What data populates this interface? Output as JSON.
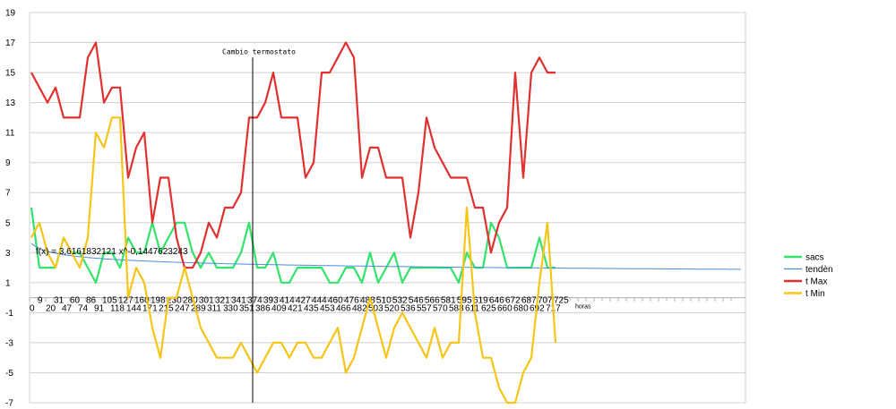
{
  "chart_data": {
    "type": "line",
    "x_categories": [
      "0",
      "9",
      "20",
      "31",
      "47",
      "60",
      "74",
      "86",
      "91",
      "105",
      "118",
      "127",
      "144",
      "160",
      "171",
      "198",
      "215",
      "230",
      "247",
      "280",
      "289",
      "301",
      "311",
      "321",
      "330",
      "341",
      "351",
      "374",
      "386",
      "393",
      "409",
      "414",
      "421",
      "427",
      "435",
      "444",
      "453",
      "460",
      "466",
      "476",
      "482",
      "488",
      "503",
      "510",
      "520",
      "532",
      "536",
      "546",
      "557",
      "566",
      "570",
      "581",
      "588",
      "595",
      "611",
      "619",
      "625",
      "646",
      "660",
      "672",
      "680",
      "687",
      "692",
      "707",
      "717",
      "725"
    ],
    "xlabel": "horas",
    "ylim": [
      -7,
      19
    ],
    "yticks": [
      -7,
      -5,
      -3,
      -1,
      1,
      3,
      5,
      7,
      9,
      11,
      13,
      15,
      17,
      19
    ],
    "grid": true,
    "legend_position": "right",
    "series": [
      {
        "name": "sacs",
        "color": "#33e36b",
        "values": [
          6,
          2,
          2,
          2,
          4,
          3,
          3,
          2,
          1,
          3,
          3,
          2,
          4,
          3,
          3,
          5,
          3,
          4,
          5,
          5,
          3,
          2,
          3,
          2,
          2,
          2,
          3,
          5,
          2,
          2,
          3,
          1,
          1,
          2,
          2,
          2,
          2,
          1,
          1,
          2,
          2,
          1,
          3,
          1,
          2,
          3,
          1,
          2,
          2,
          2,
          2,
          2,
          2,
          1,
          3,
          2,
          2,
          5,
          4,
          2,
          2,
          2,
          2,
          4,
          2,
          2
        ]
      },
      {
        "name": "tendèn",
        "color": "#4a90d9",
        "trend": true,
        "a": 3.6161832121,
        "b": -0.1447623243
      },
      {
        "name": "t Max",
        "color": "#e03030",
        "values": [
          15,
          14,
          13,
          14,
          12,
          12,
          12,
          16,
          17,
          13,
          14,
          14,
          8,
          10,
          11,
          5,
          8,
          8,
          4,
          2,
          2,
          3,
          5,
          4,
          6,
          6,
          7,
          12,
          12,
          13,
          15,
          12,
          12,
          12,
          8,
          9,
          15,
          15,
          16,
          17,
          16,
          8,
          10,
          10,
          8,
          8,
          8,
          4,
          7,
          12,
          10,
          9,
          8,
          8,
          8,
          6,
          6,
          3,
          5,
          6,
          15,
          8,
          15,
          16,
          15,
          15
        ]
      },
      {
        "name": "t Min",
        "color": "#f5c518",
        "values": [
          4,
          5,
          3,
          2,
          4,
          3,
          2,
          4,
          11,
          10,
          12,
          12,
          0,
          2,
          1,
          -2,
          -4,
          0,
          0,
          2,
          0,
          -2,
          -3,
          -4,
          -4,
          -4,
          -3,
          -4,
          -5,
          -4,
          -3,
          -3,
          -4,
          -3,
          -3,
          -4,
          -4,
          -3,
          -2,
          -5,
          -4,
          -2,
          0,
          -2,
          -4,
          -2,
          -1,
          -2,
          -3,
          -4,
          -2,
          -4,
          -3,
          -3,
          6,
          -1,
          -4,
          -4,
          -6,
          -7,
          -7,
          -5,
          -4,
          1,
          5,
          -3
        ]
      }
    ],
    "annotations": [
      {
        "text": "Cambio termostato",
        "x_index": 27
      },
      {
        "text": "f(x) = 3,6161832121 x^-0,1447623243"
      }
    ]
  }
}
